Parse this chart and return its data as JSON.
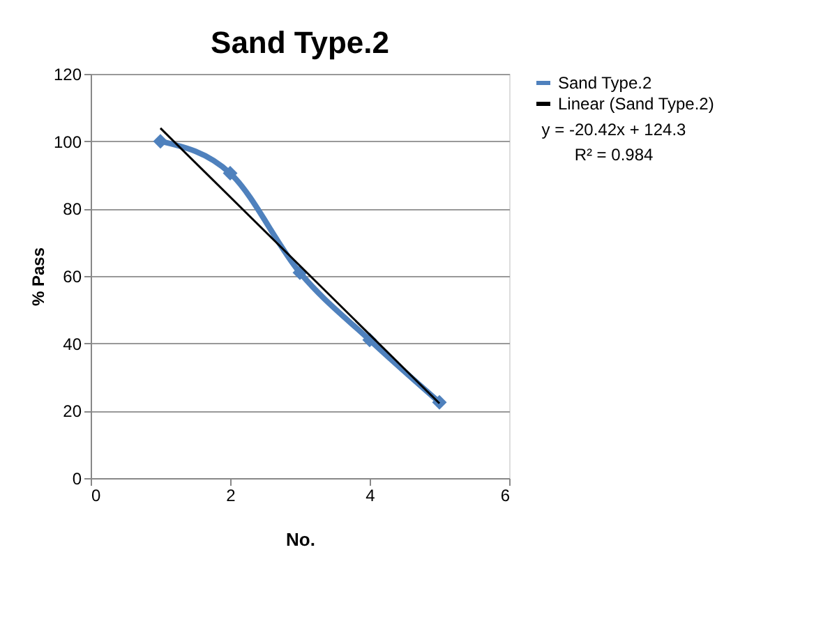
{
  "chart_data": {
    "type": "line",
    "title": "Sand Type.2",
    "xlabel": "No.",
    "ylabel": "% Pass",
    "x": [
      1,
      2,
      3,
      4,
      5
    ],
    "series": [
      {
        "name": "Sand Type.2",
        "color": "#4f81bd",
        "values": [
          100,
          90.5,
          61,
          41,
          22.5
        ],
        "marker": "diamond"
      },
      {
        "name": "Linear (Sand Type.2)",
        "color": "#000000",
        "type": "line",
        "x": [
          1,
          5
        ],
        "values": [
          103.88,
          22.2
        ],
        "marker": "none"
      }
    ],
    "xlim": [
      0,
      6
    ],
    "xticks": [
      0,
      2,
      4,
      6
    ],
    "ylim": [
      0,
      120
    ],
    "yticks": [
      0,
      20,
      40,
      60,
      80,
      100,
      120
    ],
    "grid": "y",
    "legend": "right",
    "annotations": [
      "y = -20.42x + 124.3",
      "R² = 0.984"
    ]
  }
}
